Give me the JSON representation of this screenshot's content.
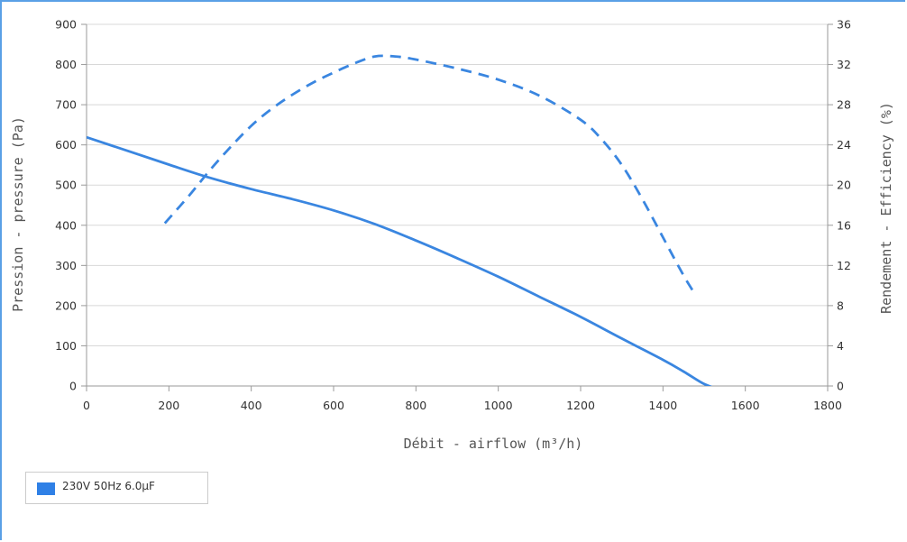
{
  "chart_data": {
    "type": "line",
    "xlabel": "Débit - airflow (m³/h)",
    "ylabel": "Pression - pressure (Pa)",
    "y2label": "Rendement - Efficiency (%)",
    "xlim": [
      0,
      1800
    ],
    "ylim": [
      0,
      900
    ],
    "y2lim": [
      0,
      36
    ],
    "x_ticks": [
      "0",
      "200",
      "400",
      "600",
      "800",
      "1000",
      "1200",
      "1400",
      "1600",
      "1800"
    ],
    "y_ticks": [
      "0",
      "100",
      "200",
      "300",
      "400",
      "500",
      "600",
      "700",
      "800",
      "900"
    ],
    "y2_ticks": [
      "0",
      "4",
      "8",
      "12",
      "16",
      "20",
      "24",
      "28",
      "32",
      "36"
    ],
    "grid": true,
    "legend_position": "bottom-left",
    "series": [
      {
        "name": "230V 50Hz 6.0µF",
        "axis": "left",
        "style": "solid",
        "color": "#3a86e0",
        "x": [
          0,
          100,
          200,
          300,
          400,
          500,
          600,
          700,
          800,
          900,
          1000,
          1100,
          1200,
          1300,
          1400,
          1450,
          1500,
          1540
        ],
        "y": [
          619,
          585,
          551,
          518,
          490,
          465,
          437,
          403,
          362,
          318,
          272,
          222,
          172,
          118,
          65,
          36,
          5,
          -10
        ]
      },
      {
        "axis": "right",
        "style": "dashed",
        "color": "#3a86e0",
        "x": [
          190,
          250,
          300,
          350,
          400,
          450,
          500,
          550,
          600,
          650,
          700,
          750,
          800,
          900,
          1000,
          1100,
          1200,
          1250,
          1300,
          1350,
          1400,
          1450,
          1480
        ],
        "y": [
          16.2,
          19.0,
          21.5,
          23.8,
          25.9,
          27.6,
          29.0,
          30.2,
          31.2,
          32.1,
          32.8,
          32.8,
          32.5,
          31.6,
          30.5,
          28.9,
          26.5,
          24.6,
          22.0,
          18.6,
          14.8,
          11.0,
          9.0
        ]
      }
    ]
  },
  "legend": {
    "swatch_color": "#2f80e6",
    "label": "230V 50Hz 6.0µF"
  }
}
